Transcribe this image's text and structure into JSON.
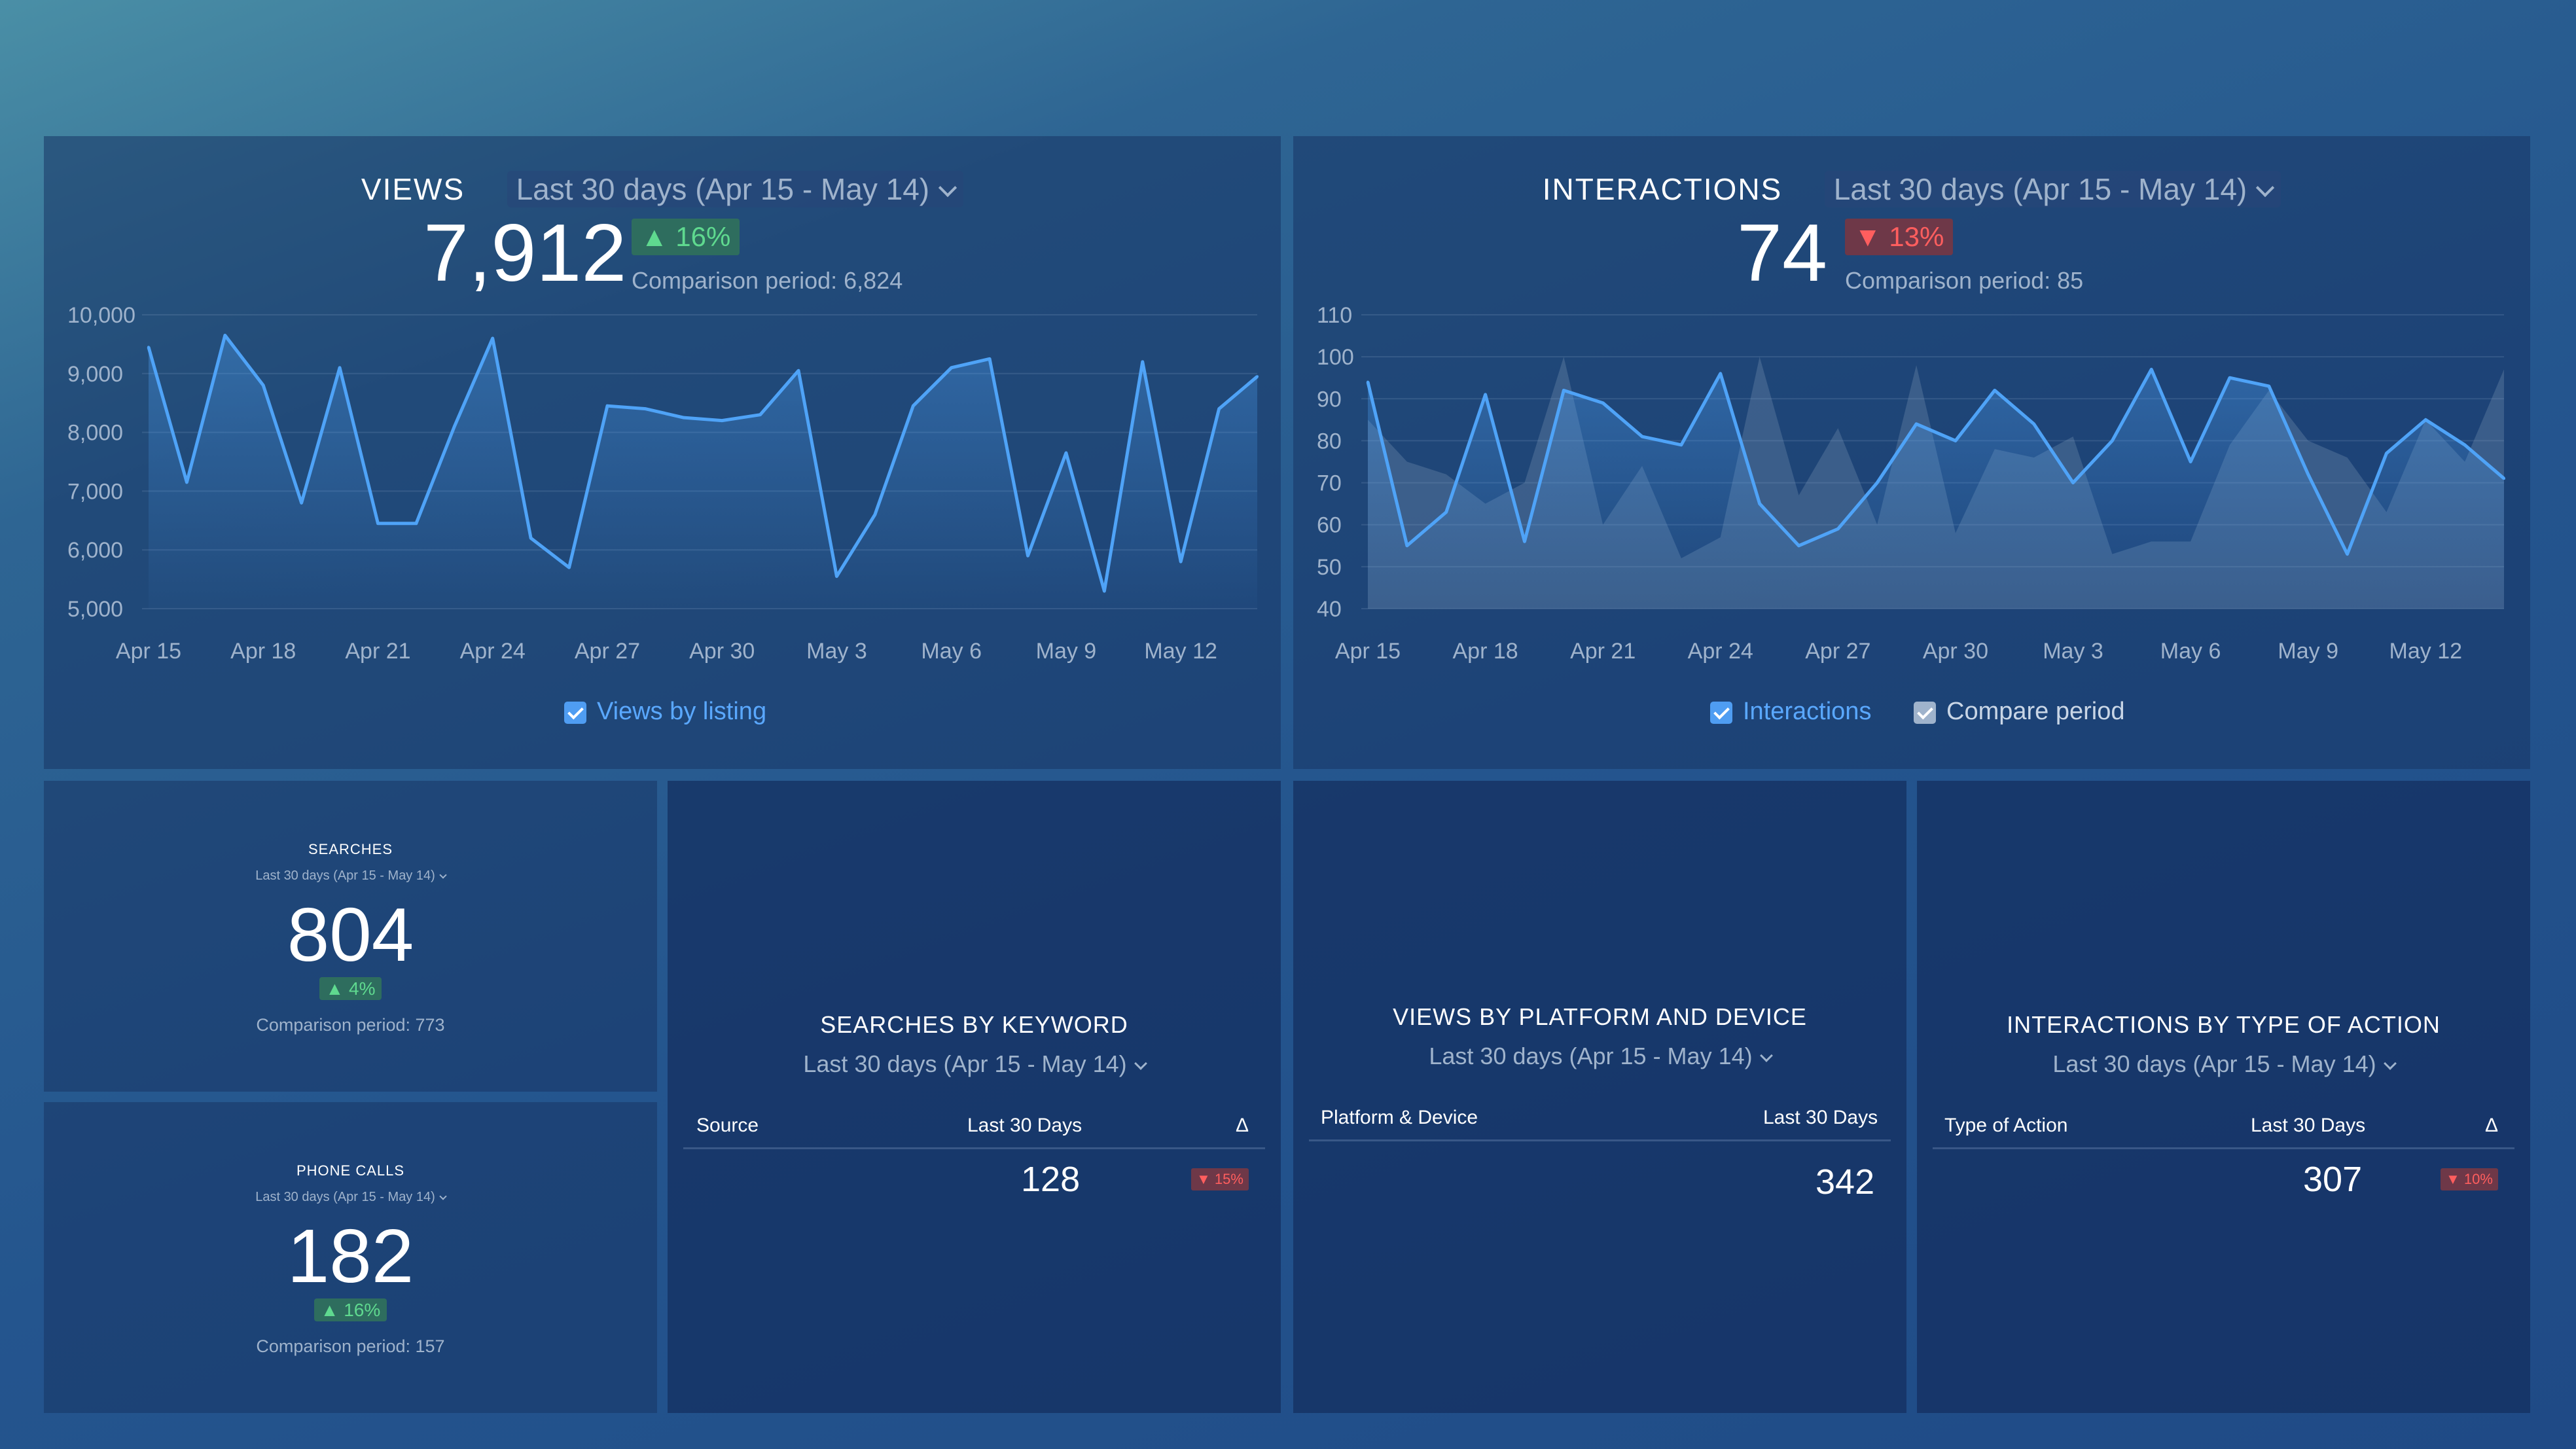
{
  "colors": {
    "line": "#4fa3f7",
    "compare_area": "#8aa0bd",
    "up": "#5fd98f",
    "down": "#ff5e5e",
    "muted": "#9fb3cc"
  },
  "views": {
    "title": "VIEWS",
    "period": "Last 30 days (Apr 15 - May 14)",
    "value": "7,912",
    "change": "16%",
    "comparison": "Comparison period: 6,824",
    "legend": "Views by listing",
    "chart_data": {
      "type": "area",
      "x_ticks": [
        "Apr 15",
        "Apr 18",
        "Apr 21",
        "Apr 24",
        "Apr 27",
        "Apr 30",
        "May 3",
        "May 6",
        "May 9",
        "May 12"
      ],
      "y_ticks": [
        "10,000",
        "9,000",
        "8,000",
        "7,000",
        "6,000",
        "5,000"
      ],
      "ylim": [
        5000,
        10000
      ],
      "x": [
        "Apr 15",
        "Apr 16",
        "Apr 17",
        "Apr 18",
        "Apr 19",
        "Apr 20",
        "Apr 21",
        "Apr 22",
        "Apr 23",
        "Apr 24",
        "Apr 25",
        "Apr 26",
        "Apr 27",
        "Apr 28",
        "Apr 29",
        "Apr 30",
        "May 1",
        "May 2",
        "May 3",
        "May 4",
        "May 5",
        "May 6",
        "May 7",
        "May 8",
        "May 9",
        "May 10",
        "May 11",
        "May 12",
        "May 13",
        "May 14"
      ],
      "series": [
        {
          "name": "Views by listing",
          "values": [
            9450,
            7150,
            9650,
            8800,
            6800,
            9100,
            6450,
            6450,
            8100,
            9600,
            6200,
            5700,
            8450,
            8400,
            8250,
            8200,
            8300,
            9050,
            5550,
            6600,
            8450,
            9100,
            9250,
            5900,
            7650,
            5300,
            9200,
            5800,
            8400,
            8950
          ]
        }
      ]
    }
  },
  "interactions": {
    "title": "INTERACTIONS",
    "period": "Last 30 days (Apr 15 - May 14)",
    "value": "74",
    "change": "13%",
    "comparison": "Comparison period: 85",
    "legend_main": "Interactions",
    "legend_compare": "Compare period",
    "chart_data": {
      "type": "line",
      "x_ticks": [
        "Apr 15",
        "Apr 18",
        "Apr 21",
        "Apr 24",
        "Apr 27",
        "Apr 30",
        "May 3",
        "May 6",
        "May 9",
        "May 12"
      ],
      "y_ticks": [
        "110",
        "100",
        "90",
        "80",
        "70",
        "60",
        "50",
        "40"
      ],
      "ylim": [
        40,
        110
      ],
      "x": [
        "Apr 15",
        "Apr 16",
        "Apr 17",
        "Apr 18",
        "Apr 19",
        "Apr 20",
        "Apr 21",
        "Apr 22",
        "Apr 23",
        "Apr 24",
        "Apr 25",
        "Apr 26",
        "Apr 27",
        "Apr 28",
        "Apr 29",
        "Apr 30",
        "May 1",
        "May 2",
        "May 3",
        "May 4",
        "May 5",
        "May 6",
        "May 7",
        "May 8",
        "May 9",
        "May 10",
        "May 11",
        "May 12",
        "May 13",
        "May 14"
      ],
      "series": [
        {
          "name": "Interactions",
          "values": [
            94,
            55,
            63,
            91,
            56,
            92,
            89,
            81,
            79,
            96,
            65,
            55,
            59,
            70,
            84,
            80,
            92,
            84,
            70,
            80,
            97,
            75,
            95,
            93,
            72,
            53,
            77,
            85,
            79,
            71
          ]
        },
        {
          "name": "Compare period",
          "values": [
            85,
            75,
            72,
            65,
            70,
            100,
            60,
            74,
            52,
            57,
            100,
            67,
            83,
            60,
            98,
            58,
            78,
            76,
            81,
            53,
            56,
            56,
            79,
            92,
            80,
            76,
            63,
            85,
            75,
            97
          ]
        }
      ]
    }
  },
  "searches": {
    "title": "SEARCHES",
    "period": "Last 30 days (Apr 15 - May 14)",
    "value": "804",
    "change": "4%",
    "comparison": "Comparison period: 773"
  },
  "phone_calls": {
    "title": "PHONE CALLS",
    "period": "Last 30 days (Apr 15 - May 14)",
    "value": "182",
    "change": "16%",
    "comparison": "Comparison period: 157"
  },
  "searches_by_keyword": {
    "title": "SEARCHES BY KEYWORD",
    "period": "Last 30 days (Apr 15 - May 14)",
    "columns": [
      "Source",
      "Last 30 Days",
      "Δ"
    ],
    "value": "128",
    "change": "15%"
  },
  "views_by_platform": {
    "title": "VIEWS BY PLATFORM AND DEVICE",
    "period": "Last 30 days (Apr 15 - May 14)",
    "columns": [
      "Platform & Device",
      "Last 30 Days"
    ],
    "value": "342"
  },
  "interactions_by_type": {
    "title": "INTERACTIONS BY TYPE OF ACTION",
    "period": "Last 30 days (Apr 15 - May 14)",
    "columns": [
      "Type of Action",
      "Last 30 Days",
      "Δ"
    ],
    "value": "307",
    "change": "10%"
  }
}
